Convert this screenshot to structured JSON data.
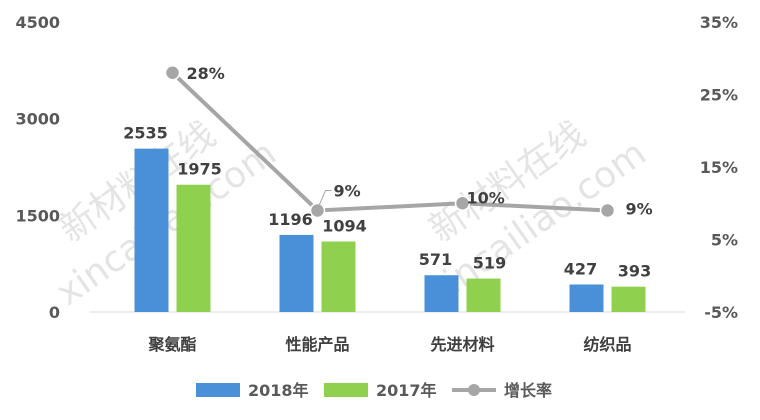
{
  "chart_data": {
    "type": "bar",
    "categories": [
      "聚氨酯",
      "性能产品",
      "先进材料",
      "纺织品"
    ],
    "series": [
      {
        "name": "2018年",
        "type": "bar",
        "axis": "left",
        "color": "#4a90d9",
        "values": [
          2535,
          1196,
          571,
          427
        ]
      },
      {
        "name": "2017年",
        "type": "bar",
        "axis": "left",
        "color": "#8fd14f",
        "values": [
          1975,
          1094,
          519,
          393
        ]
      },
      {
        "name": "增长率",
        "type": "line",
        "axis": "right",
        "color": "#a6a6a6",
        "values": [
          28,
          9,
          10,
          9
        ]
      }
    ],
    "bar_labels": [
      [
        "2535",
        "1196",
        "571",
        "427"
      ],
      [
        "1975",
        "1094",
        "519",
        "393"
      ]
    ],
    "point_labels": [
      "28%",
      "9%",
      "10%",
      "9%"
    ],
    "left_axis": {
      "min": 0,
      "max": 4500,
      "ticks": [
        0,
        1500,
        3000,
        4500
      ],
      "tick_labels": [
        "0",
        "1500",
        "3000",
        "4500"
      ]
    },
    "right_axis": {
      "min": -5,
      "max": 35,
      "ticks": [
        -5,
        5,
        15,
        25,
        35
      ],
      "tick_labels": [
        "-5%",
        "5%",
        "15%",
        "25%",
        "35%"
      ]
    },
    "legend_position": "bottom",
    "gridlines": false,
    "title": ""
  },
  "watermark": {
    "line1": "新材料在线",
    "line2": "xincailiao.com"
  }
}
